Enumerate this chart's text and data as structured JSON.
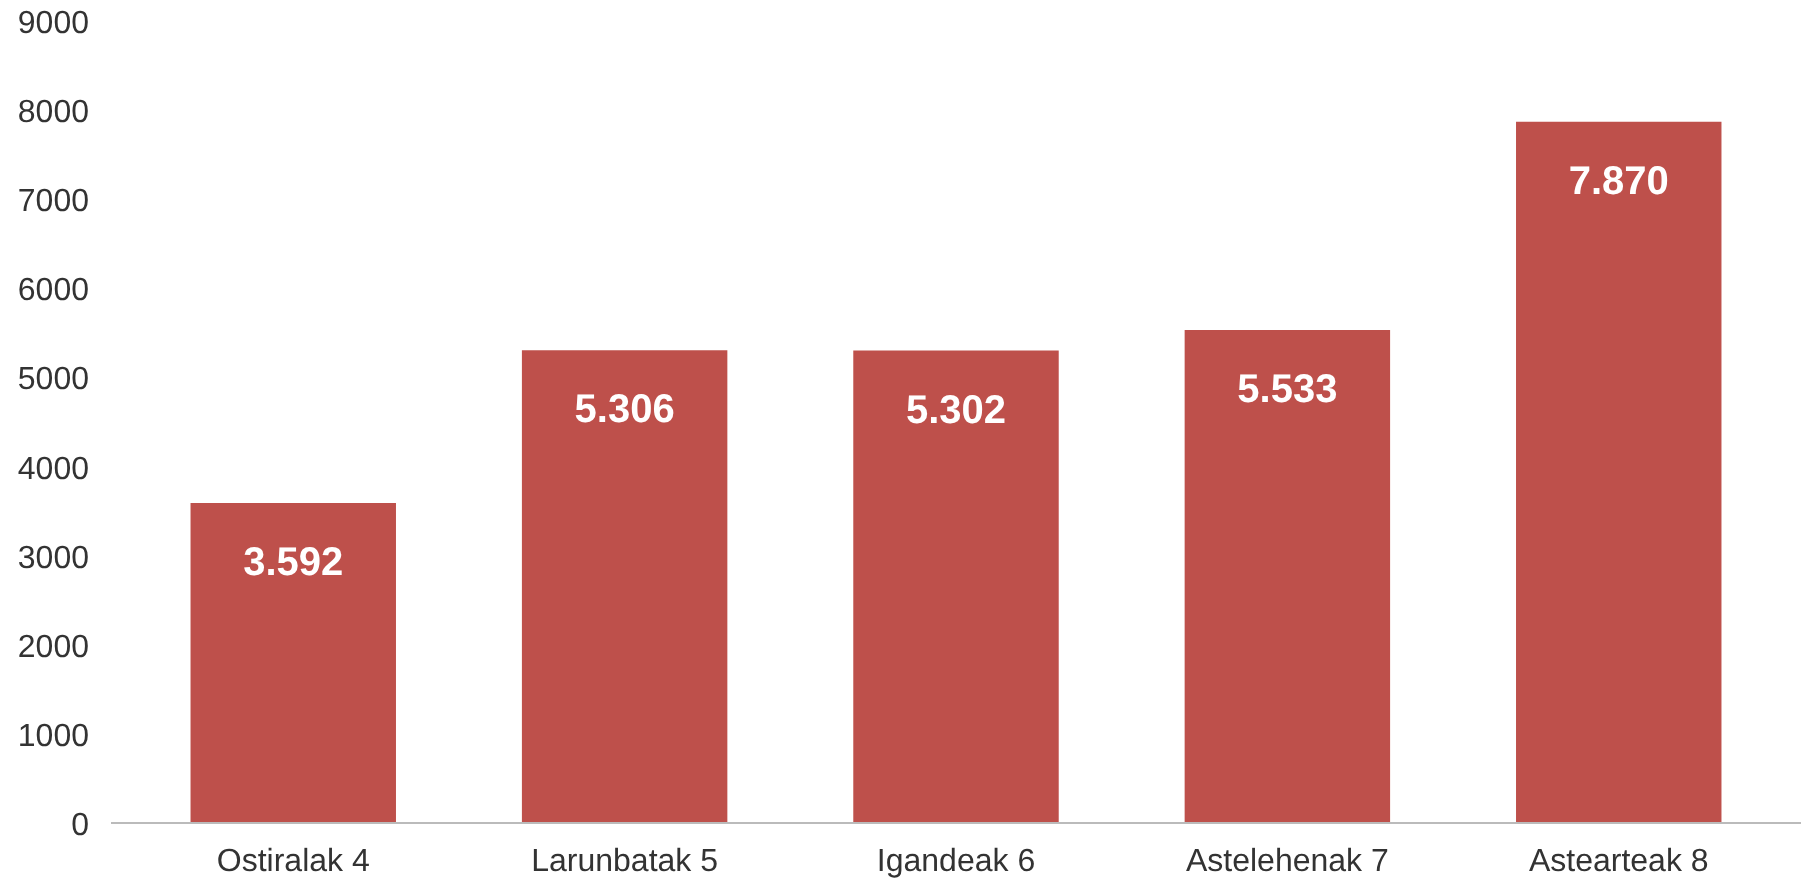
{
  "chart_data": {
    "type": "bar",
    "categories": [
      "Ostiralak 4",
      "Larunbatak 5",
      "Igandeak 6",
      "Astelehenak 7",
      "Astearteak 8"
    ],
    "values": [
      3592,
      5306,
      5302,
      5533,
      7870
    ],
    "value_labels": [
      "3.592",
      "5.306",
      "5.302",
      "5.533",
      "7.870"
    ],
    "color": "#be504b",
    "ylim": [
      0,
      9000
    ],
    "yticks": [
      0,
      1000,
      2000,
      3000,
      4000,
      5000,
      6000,
      7000,
      8000,
      9000
    ],
    "grid": false
  }
}
